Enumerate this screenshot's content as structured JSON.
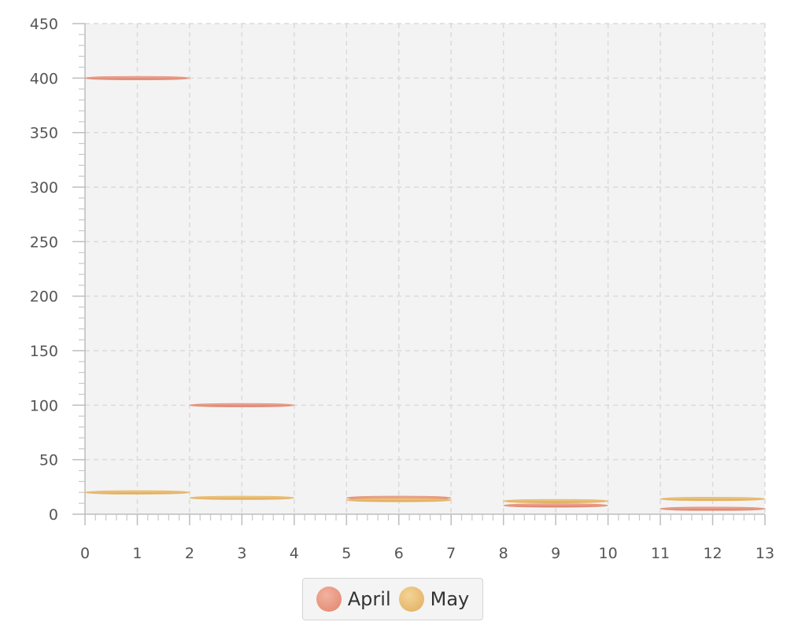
{
  "chart_data": {
    "type": "bar",
    "subtype": "range-segments",
    "title": "",
    "xlabel": "",
    "ylabel": "",
    "xlim": [
      0,
      13
    ],
    "ylim": [
      0,
      450
    ],
    "x_ticks": [
      0,
      1,
      2,
      3,
      4,
      5,
      6,
      7,
      8,
      9,
      10,
      11,
      12,
      13
    ],
    "y_ticks": [
      0,
      50,
      100,
      150,
      200,
      250,
      300,
      350,
      400,
      450
    ],
    "grid": true,
    "legend_position": "bottom-center",
    "series": [
      {
        "name": "April",
        "color": "#e8917a",
        "segments": [
          {
            "x0": 0,
            "x1": 2,
            "y": 400
          },
          {
            "x0": 2,
            "x1": 4,
            "y": 100
          },
          {
            "x0": 5,
            "x1": 7,
            "y": 15
          },
          {
            "x0": 8,
            "x1": 10,
            "y": 8
          },
          {
            "x0": 11,
            "x1": 13,
            "y": 5
          }
        ]
      },
      {
        "name": "May",
        "color": "#e8b86a",
        "segments": [
          {
            "x0": 0,
            "x1": 2,
            "y": 20
          },
          {
            "x0": 2,
            "x1": 4,
            "y": 15
          },
          {
            "x0": 5,
            "x1": 7,
            "y": 13
          },
          {
            "x0": 8,
            "x1": 10,
            "y": 12
          },
          {
            "x0": 11,
            "x1": 13,
            "y": 14
          }
        ]
      }
    ]
  },
  "legend": {
    "items": [
      {
        "label": "April",
        "color": "#e8917a"
      },
      {
        "label": "May",
        "color": "#e8b86a"
      }
    ]
  }
}
